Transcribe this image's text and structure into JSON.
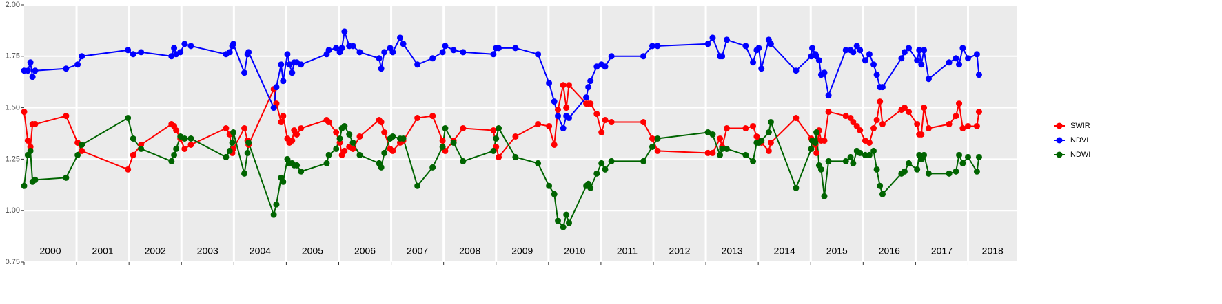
{
  "chart_data": {
    "type": "line",
    "x": [
      2000.0,
      2000.07,
      2000.12,
      2000.16,
      2000.21,
      2000.8,
      2001.02,
      2001.1,
      2001.98,
      2002.08,
      2002.23,
      2002.81,
      2002.86,
      2002.9,
      2002.98,
      2003.06,
      2003.18,
      2003.85,
      2003.92,
      2003.97,
      2003.99,
      2004.2,
      2004.26,
      2004.28,
      2004.76,
      2004.81,
      2004.9,
      2004.94,
      2005.02,
      2005.06,
      2005.11,
      2005.15,
      2005.2,
      2005.28,
      2005.77,
      2005.81,
      2005.95,
      2006.02,
      2006.06,
      2006.11,
      2006.2,
      2006.27,
      2006.4,
      2006.77,
      2006.81,
      2006.87,
      2006.98,
      2007.03,
      2007.17,
      2007.23,
      2007.5,
      2007.79,
      2007.98,
      2008.03,
      2008.19,
      2008.37,
      2008.95,
      2009.0,
      2009.05,
      2009.37,
      2009.8,
      2010.01,
      2010.11,
      2010.18,
      2010.28,
      2010.34,
      2010.39,
      2010.72,
      2010.76,
      2010.8,
      2010.92,
      2011.01,
      2011.08,
      2011.2,
      2011.81,
      2011.98,
      2012.08,
      2013.04,
      2013.13,
      2013.27,
      2013.31,
      2013.4,
      2013.76,
      2013.9,
      2013.97,
      2014.01,
      2014.06,
      2014.2,
      2014.24,
      2014.72,
      2015.01,
      2015.03,
      2015.09,
      2015.11,
      2015.16,
      2015.2,
      2015.26,
      2015.34,
      2015.67,
      2015.76,
      2015.81,
      2015.88,
      2015.94,
      2016.04,
      2016.12,
      2016.2,
      2016.26,
      2016.32,
      2016.37,
      2016.73,
      2016.79,
      2016.87,
      2017.03,
      2017.07,
      2017.11,
      2017.16,
      2017.25,
      2017.64,
      2017.77,
      2017.83,
      2017.9,
      2018.0,
      2018.17,
      2018.21
    ],
    "series": [
      {
        "name": "SWIR",
        "color": "#ff0000",
        "values": [
          1.48,
          1.34,
          1.31,
          1.42,
          1.42,
          1.46,
          1.33,
          1.29,
          1.2,
          1.27,
          1.32,
          1.42,
          1.41,
          1.39,
          1.35,
          1.3,
          1.32,
          1.4,
          1.37,
          1.28,
          1.3,
          1.4,
          1.34,
          1.32,
          1.59,
          1.52,
          1.43,
          1.46,
          1.35,
          1.33,
          1.34,
          1.39,
          1.37,
          1.4,
          1.44,
          1.43,
          1.38,
          1.33,
          1.27,
          1.29,
          1.31,
          1.3,
          1.36,
          1.44,
          1.43,
          1.38,
          1.3,
          1.29,
          1.33,
          1.34,
          1.45,
          1.46,
          1.34,
          1.29,
          1.34,
          1.4,
          1.39,
          1.31,
          1.26,
          1.36,
          1.42,
          1.41,
          1.32,
          1.49,
          1.61,
          1.5,
          1.61,
          1.52,
          1.52,
          1.52,
          1.47,
          1.38,
          1.44,
          1.43,
          1.43,
          1.35,
          1.29,
          1.28,
          1.28,
          1.35,
          1.31,
          1.4,
          1.4,
          1.41,
          1.36,
          1.34,
          1.33,
          1.29,
          1.33,
          1.45,
          1.35,
          1.34,
          1.32,
          1.28,
          1.39,
          1.34,
          1.34,
          1.48,
          1.46,
          1.45,
          1.43,
          1.41,
          1.39,
          1.34,
          1.33,
          1.4,
          1.44,
          1.53,
          1.42,
          1.49,
          1.5,
          1.48,
          1.42,
          1.37,
          1.37,
          1.5,
          1.4,
          1.42,
          1.46,
          1.52,
          1.4,
          1.41,
          1.41,
          1.48
        ]
      },
      {
        "name": "NDVI",
        "color": "#0000ff",
        "values": [
          1.68,
          1.68,
          1.72,
          1.65,
          1.68,
          1.69,
          1.71,
          1.75,
          1.78,
          1.76,
          1.77,
          1.75,
          1.79,
          1.76,
          1.77,
          1.81,
          1.8,
          1.76,
          1.77,
          1.8,
          1.81,
          1.67,
          1.76,
          1.77,
          1.5,
          1.6,
          1.71,
          1.63,
          1.76,
          1.71,
          1.67,
          1.72,
          1.72,
          1.71,
          1.76,
          1.78,
          1.79,
          1.77,
          1.79,
          1.87,
          1.8,
          1.8,
          1.77,
          1.74,
          1.69,
          1.77,
          1.79,
          1.77,
          1.84,
          1.81,
          1.71,
          1.74,
          1.77,
          1.8,
          1.78,
          1.77,
          1.76,
          1.79,
          1.79,
          1.79,
          1.76,
          1.62,
          1.53,
          1.46,
          1.4,
          1.46,
          1.45,
          1.55,
          1.6,
          1.63,
          1.7,
          1.71,
          1.7,
          1.75,
          1.75,
          1.8,
          1.8,
          1.81,
          1.84,
          1.75,
          1.75,
          1.83,
          1.8,
          1.72,
          1.78,
          1.79,
          1.69,
          1.83,
          1.81,
          1.68,
          1.75,
          1.79,
          1.76,
          1.75,
          1.73,
          1.66,
          1.67,
          1.56,
          1.78,
          1.78,
          1.77,
          1.8,
          1.78,
          1.73,
          1.76,
          1.71,
          1.66,
          1.6,
          1.6,
          1.74,
          1.77,
          1.79,
          1.73,
          1.78,
          1.71,
          1.78,
          1.64,
          1.72,
          1.74,
          1.71,
          1.79,
          1.74,
          1.76,
          1.66
        ]
      },
      {
        "name": "NDWI",
        "color": "#006400",
        "values": [
          1.12,
          1.27,
          1.29,
          1.14,
          1.15,
          1.16,
          1.27,
          1.32,
          1.45,
          1.35,
          1.3,
          1.24,
          1.27,
          1.3,
          1.36,
          1.35,
          1.35,
          1.26,
          1.29,
          1.33,
          1.38,
          1.18,
          1.28,
          1.33,
          0.98,
          1.03,
          1.16,
          1.14,
          1.25,
          1.23,
          1.23,
          1.22,
          1.22,
          1.19,
          1.23,
          1.27,
          1.3,
          1.35,
          1.4,
          1.41,
          1.37,
          1.33,
          1.27,
          1.23,
          1.21,
          1.28,
          1.35,
          1.36,
          1.35,
          1.35,
          1.12,
          1.21,
          1.31,
          1.4,
          1.33,
          1.24,
          1.29,
          1.35,
          1.4,
          1.26,
          1.23,
          1.12,
          1.08,
          0.95,
          0.92,
          0.98,
          0.94,
          1.12,
          1.13,
          1.11,
          1.18,
          1.23,
          1.2,
          1.24,
          1.24,
          1.31,
          1.35,
          1.38,
          1.37,
          1.27,
          1.3,
          1.3,
          1.27,
          1.24,
          1.33,
          1.33,
          1.34,
          1.38,
          1.43,
          1.11,
          1.3,
          1.34,
          1.33,
          1.38,
          1.22,
          1.2,
          1.07,
          1.24,
          1.24,
          1.26,
          1.23,
          1.29,
          1.28,
          1.27,
          1.27,
          1.29,
          1.2,
          1.12,
          1.08,
          1.18,
          1.19,
          1.23,
          1.2,
          1.27,
          1.25,
          1.27,
          1.18,
          1.18,
          1.19,
          1.27,
          1.23,
          1.26,
          1.19,
          1.26
        ]
      }
    ],
    "xlim": [
      2000,
      2018.94
    ],
    "xticks": [
      2000,
      2001,
      2002,
      2003,
      2004,
      2005,
      2006,
      2007,
      2008,
      2009,
      2010,
      2011,
      2012,
      2013,
      2014,
      2015,
      2016,
      2017,
      2018
    ],
    "ylim": [
      0.75,
      2.0
    ],
    "yticks": [
      {
        "value": 0.75,
        "label": "0.75"
      },
      {
        "value": 1.0,
        "label": "1.00"
      },
      {
        "value": 1.25,
        "label": "1.25"
      },
      {
        "value": 1.5,
        "label": "1.50"
      },
      {
        "value": 1.75,
        "label": "1.75"
      },
      {
        "value": 2.0,
        "label": "2.00"
      }
    ],
    "grid": true,
    "legend": "right"
  }
}
